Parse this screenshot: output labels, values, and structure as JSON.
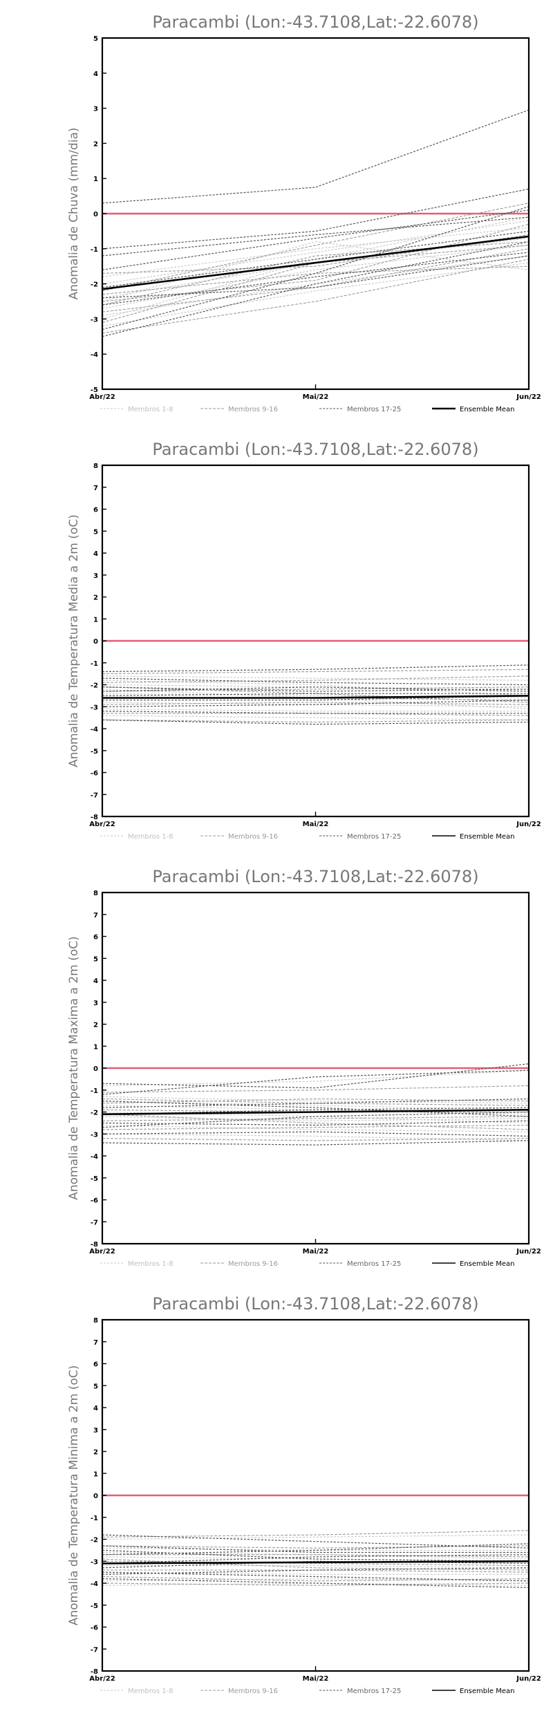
{
  "colors": {
    "zero_line": "#e35d72",
    "group1": "#c8c8c8",
    "group2": "#9a9a9a",
    "group3": "#555555",
    "mean": "#000000",
    "legend_text1": "#c0c0c0",
    "legend_text2": "#9a9a9a",
    "legend_text3": "#666666",
    "legend_text4": "#000000"
  },
  "legend": {
    "g1": "Membros 1-8",
    "g2": "Membros 9-16",
    "g3": "Membros 17-25",
    "mean": "Ensemble Mean"
  },
  "chart_data": [
    {
      "type": "line",
      "title": "Paracambi (Lon:-43.7108,Lat:-22.6078)",
      "ylabel": "Anomalia de Chuva (mm/dia)",
      "categories": [
        "Abr/22",
        "Mai/22",
        "Jun/22"
      ],
      "ylim": [
        -5,
        5
      ],
      "yticks": [
        -5,
        -4,
        -3,
        -2,
        -1,
        0,
        1,
        2,
        3,
        4,
        5
      ],
      "series": [
        {
          "group": 1,
          "values": [
            -2.0,
            -1.1,
            -0.2
          ]
        },
        {
          "group": 1,
          "values": [
            -2.4,
            -1.4,
            -0.7
          ]
        },
        {
          "group": 1,
          "values": [
            -2.7,
            -1.6,
            -0.9
          ]
        },
        {
          "group": 1,
          "values": [
            -2.9,
            -2.0,
            -1.2
          ]
        },
        {
          "group": 1,
          "values": [
            -3.2,
            -2.2,
            -1.4
          ]
        },
        {
          "group": 1,
          "values": [
            -2.5,
            -0.8,
            -1.6
          ]
        },
        {
          "group": 1,
          "values": [
            -1.8,
            -1.0,
            -0.4
          ]
        },
        {
          "group": 1,
          "values": [
            -3.0,
            -1.3,
            -0.1
          ]
        },
        {
          "group": 2,
          "values": [
            -2.2,
            -0.9,
            0.3
          ]
        },
        {
          "group": 2,
          "values": [
            -2.6,
            -1.2,
            -0.8
          ]
        },
        {
          "group": 2,
          "values": [
            -2.8,
            -2.1,
            -1.0
          ]
        },
        {
          "group": 2,
          "values": [
            -3.4,
            -2.5,
            -1.3
          ]
        },
        {
          "group": 2,
          "values": [
            -2.3,
            -1.7,
            -1.5
          ]
        },
        {
          "group": 2,
          "values": [
            -1.7,
            -1.5,
            -0.6
          ]
        },
        {
          "group": 2,
          "values": [
            -2.5,
            -1.9,
            -0.3
          ]
        },
        {
          "group": 2,
          "values": [
            -3.1,
            -1.4,
            -0.9
          ]
        },
        {
          "group": 3,
          "values": [
            0.3,
            0.75,
            2.95
          ]
        },
        {
          "group": 3,
          "values": [
            -1.0,
            -0.5,
            0.7
          ]
        },
        {
          "group": 3,
          "values": [
            -1.2,
            -0.6,
            -0.1
          ]
        },
        {
          "group": 3,
          "values": [
            -1.6,
            -0.7,
            0.1
          ]
        },
        {
          "group": 3,
          "values": [
            -2.1,
            -1.3,
            -0.5
          ]
        },
        {
          "group": 3,
          "values": [
            -2.6,
            -1.8,
            -1.1
          ]
        },
        {
          "group": 3,
          "values": [
            -3.3,
            -1.7,
            0.2
          ]
        },
        {
          "group": 3,
          "values": [
            -3.5,
            -2.0,
            -0.8
          ]
        },
        {
          "group": 3,
          "values": [
            -2.4,
            -2.1,
            -1.2
          ]
        },
        {
          "group": 4,
          "name": "Ensemble Mean",
          "values": [
            -2.15,
            -1.4,
            -0.65
          ]
        }
      ]
    },
    {
      "type": "line",
      "title": "Paracambi (Lon:-43.7108,Lat:-22.6078)",
      "ylabel": "Anomalia de Temperatura Media a 2m (oC)",
      "categories": [
        "Abr/22",
        "Mai/22",
        "Jun/22"
      ],
      "ylim": [
        -8,
        8
      ],
      "yticks": [
        -8,
        -7,
        -6,
        -5,
        -4,
        -3,
        -2,
        -1,
        0,
        1,
        2,
        3,
        4,
        5,
        6,
        7,
        8
      ],
      "series": [
        {
          "group": 1,
          "values": [
            -1.6,
            -1.7,
            -1.8
          ]
        },
        {
          "group": 1,
          "values": [
            -2.0,
            -2.1,
            -2.2
          ]
        },
        {
          "group": 1,
          "values": [
            -2.4,
            -2.5,
            -2.6
          ]
        },
        {
          "group": 1,
          "values": [
            -2.8,
            -2.9,
            -3.0
          ]
        },
        {
          "group": 1,
          "values": [
            -3.1,
            -3.2,
            -3.2
          ]
        },
        {
          "group": 1,
          "values": [
            -3.4,
            -3.5,
            -3.6
          ]
        },
        {
          "group": 1,
          "values": [
            -2.2,
            -2.6,
            -3.1
          ]
        },
        {
          "group": 1,
          "values": [
            -1.8,
            -2.0,
            -2.5
          ]
        },
        {
          "group": 2,
          "values": [
            -1.5,
            -1.4,
            -1.3
          ]
        },
        {
          "group": 2,
          "values": [
            -1.9,
            -1.8,
            -1.6
          ]
        },
        {
          "group": 2,
          "values": [
            -2.3,
            -2.2,
            -2.1
          ]
        },
        {
          "group": 2,
          "values": [
            -2.6,
            -2.6,
            -2.7
          ]
        },
        {
          "group": 2,
          "values": [
            -2.9,
            -2.8,
            -2.9
          ]
        },
        {
          "group": 2,
          "values": [
            -3.3,
            -3.3,
            -3.4
          ]
        },
        {
          "group": 2,
          "values": [
            -3.6,
            -3.7,
            -3.6
          ]
        },
        {
          "group": 2,
          "values": [
            -2.1,
            -2.4,
            -2.8
          ]
        },
        {
          "group": 3,
          "values": [
            -1.4,
            -1.3,
            -1.1
          ]
        },
        {
          "group": 3,
          "values": [
            -1.7,
            -1.9,
            -2.0
          ]
        },
        {
          "group": 3,
          "values": [
            -2.1,
            -2.3,
            -2.2
          ]
        },
        {
          "group": 3,
          "values": [
            -2.5,
            -2.4,
            -2.4
          ]
        },
        {
          "group": 3,
          "values": [
            -2.7,
            -2.7,
            -2.5
          ]
        },
        {
          "group": 3,
          "values": [
            -3.0,
            -2.9,
            -2.7
          ]
        },
        {
          "group": 3,
          "values": [
            -3.2,
            -3.3,
            -3.3
          ]
        },
        {
          "group": 3,
          "values": [
            -3.6,
            -3.8,
            -3.7
          ]
        },
        {
          "group": 3,
          "values": [
            -2.3,
            -2.1,
            -2.3
          ]
        },
        {
          "group": 4,
          "name": "Ensemble Mean",
          "values": [
            -2.6,
            -2.6,
            -2.5
          ]
        }
      ]
    },
    {
      "type": "line",
      "title": "Paracambi (Lon:-43.7108,Lat:-22.6078)",
      "ylabel": "Anomalia de Temperatura Maxima a 2m (oC)",
      "categories": [
        "Abr/22",
        "Mai/22",
        "Jun/22"
      ],
      "ylim": [
        -8,
        8
      ],
      "yticks": [
        -8,
        -7,
        -6,
        -5,
        -4,
        -3,
        -2,
        -1,
        0,
        1,
        2,
        3,
        4,
        5,
        6,
        7,
        8
      ],
      "series": [
        {
          "group": 1,
          "values": [
            -0.8,
            -0.6,
            -0.1
          ]
        },
        {
          "group": 1,
          "values": [
            -1.3,
            -1.5,
            -1.6
          ]
        },
        {
          "group": 1,
          "values": [
            -1.7,
            -1.9,
            -2.1
          ]
        },
        {
          "group": 1,
          "values": [
            -2.2,
            -2.4,
            -2.3
          ]
        },
        {
          "group": 1,
          "values": [
            -2.6,
            -2.8,
            -2.9
          ]
        },
        {
          "group": 1,
          "values": [
            -3.0,
            -3.1,
            -3.3
          ]
        },
        {
          "group": 1,
          "values": [
            -2.0,
            -2.2,
            -2.5
          ]
        },
        {
          "group": 1,
          "values": [
            -1.5,
            -1.7,
            -1.9
          ]
        },
        {
          "group": 2,
          "values": [
            -1.1,
            -1.0,
            -0.8
          ]
        },
        {
          "group": 2,
          "values": [
            -1.4,
            -1.6,
            -1.7
          ]
        },
        {
          "group": 2,
          "values": [
            -1.9,
            -2.0,
            -2.0
          ]
        },
        {
          "group": 2,
          "values": [
            -2.4,
            -2.3,
            -2.2
          ]
        },
        {
          "group": 2,
          "values": [
            -2.8,
            -2.7,
            -2.6
          ]
        },
        {
          "group": 2,
          "values": [
            -3.2,
            -3.3,
            -3.2
          ]
        },
        {
          "group": 2,
          "values": [
            -2.1,
            -2.5,
            -2.8
          ]
        },
        {
          "group": 2,
          "values": [
            -1.6,
            -1.4,
            -1.5
          ]
        },
        {
          "group": 3,
          "values": [
            -0.7,
            -0.9,
            0.2
          ]
        },
        {
          "group": 3,
          "values": [
            -1.2,
            -0.4,
            -0.1
          ]
        },
        {
          "group": 3,
          "values": [
            -1.8,
            -1.6,
            -1.4
          ]
        },
        {
          "group": 3,
          "values": [
            -2.1,
            -1.9,
            -1.8
          ]
        },
        {
          "group": 3,
          "values": [
            -2.5,
            -2.6,
            -2.4
          ]
        },
        {
          "group": 3,
          "values": [
            -2.7,
            -2.2,
            -2.0
          ]
        },
        {
          "group": 3,
          "values": [
            -3.0,
            -2.9,
            -3.1
          ]
        },
        {
          "group": 3,
          "values": [
            -3.4,
            -3.5,
            -3.3
          ]
        },
        {
          "group": 3,
          "values": [
            -1.5,
            -1.8,
            -2.2
          ]
        },
        {
          "group": 4,
          "name": "Ensemble Mean",
          "values": [
            -2.1,
            -2.0,
            -1.9
          ]
        }
      ]
    },
    {
      "type": "line",
      "title": "Paracambi (Lon:-43.7108,Lat:-22.6078)",
      "ylabel": "Anomalia de Temperatura Minima a 2m (oC)",
      "categories": [
        "Abr/22",
        "Mai/22",
        "Jun/22"
      ],
      "ylim": [
        -8,
        8
      ],
      "yticks": [
        -8,
        -7,
        -6,
        -5,
        -4,
        -3,
        -2,
        -1,
        0,
        1,
        2,
        3,
        4,
        5,
        6,
        7,
        8
      ],
      "series": [
        {
          "group": 1,
          "values": [
            -2.0,
            -1.9,
            -1.8
          ]
        },
        {
          "group": 1,
          "values": [
            -2.4,
            -2.5,
            -2.5
          ]
        },
        {
          "group": 1,
          "values": [
            -2.8,
            -2.9,
            -3.0
          ]
        },
        {
          "group": 1,
          "values": [
            -3.2,
            -3.2,
            -3.3
          ]
        },
        {
          "group": 1,
          "values": [
            -3.5,
            -3.6,
            -3.6
          ]
        },
        {
          "group": 1,
          "values": [
            -3.9,
            -3.8,
            -3.9
          ]
        },
        {
          "group": 1,
          "values": [
            -4.1,
            -4.0,
            -4.1
          ]
        },
        {
          "group": 1,
          "values": [
            -2.6,
            -2.7,
            -2.9
          ]
        },
        {
          "group": 2,
          "values": [
            -1.9,
            -1.8,
            -1.6
          ]
        },
        {
          "group": 2,
          "values": [
            -2.3,
            -2.4,
            -2.3
          ]
        },
        {
          "group": 2,
          "values": [
            -2.7,
            -2.7,
            -2.8
          ]
        },
        {
          "group": 2,
          "values": [
            -3.0,
            -3.1,
            -3.2
          ]
        },
        {
          "group": 2,
          "values": [
            -3.4,
            -3.4,
            -3.5
          ]
        },
        {
          "group": 2,
          "values": [
            -3.7,
            -3.9,
            -3.8
          ]
        },
        {
          "group": 2,
          "values": [
            -4.0,
            -4.1,
            -4.0
          ]
        },
        {
          "group": 2,
          "values": [
            -2.9,
            -3.3,
            -3.4
          ]
        },
        {
          "group": 3,
          "values": [
            -1.8,
            -2.1,
            -2.4
          ]
        },
        {
          "group": 3,
          "values": [
            -2.3,
            -2.6,
            -2.6
          ]
        },
        {
          "group": 3,
          "values": [
            -2.7,
            -2.5,
            -2.2
          ]
        },
        {
          "group": 3,
          "values": [
            -3.1,
            -2.8,
            -2.7
          ]
        },
        {
          "group": 3,
          "values": [
            -3.3,
            -3.0,
            -3.1
          ]
        },
        {
          "group": 3,
          "values": [
            -3.6,
            -3.4,
            -3.3
          ]
        },
        {
          "group": 3,
          "values": [
            -3.8,
            -4.0,
            -4.2
          ]
        },
        {
          "group": 3,
          "values": [
            -3.5,
            -3.7,
            -3.9
          ]
        },
        {
          "group": 3,
          "values": [
            -2.5,
            -2.9,
            -3.0
          ]
        },
        {
          "group": 4,
          "name": "Ensemble Mean",
          "values": [
            -3.1,
            -3.05,
            -3.0
          ]
        }
      ]
    }
  ]
}
